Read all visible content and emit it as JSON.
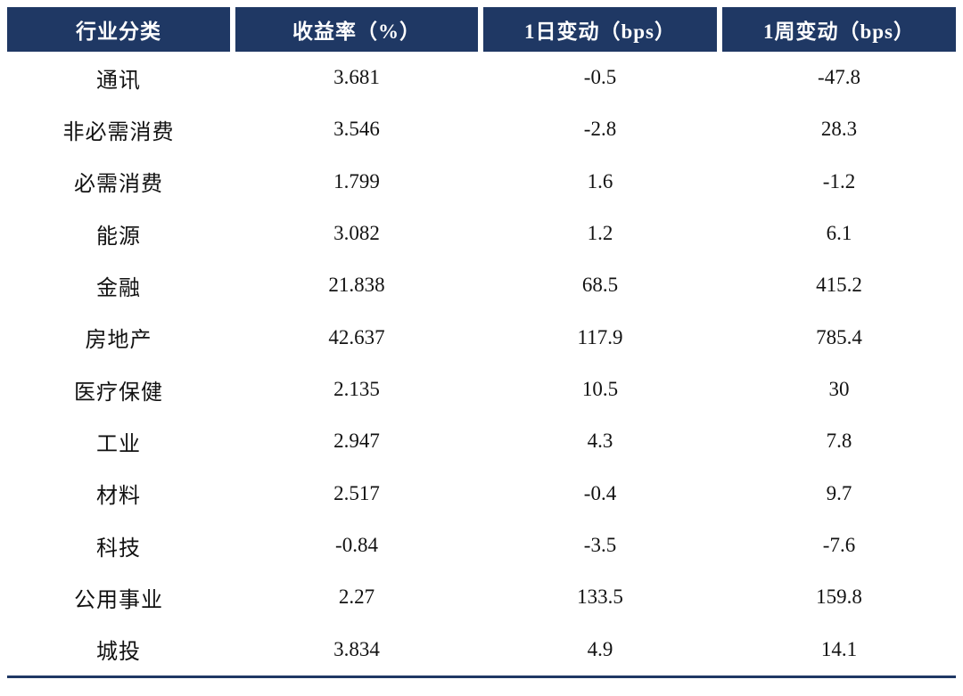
{
  "colors": {
    "header_bg": "#1f3864",
    "header_text": "#ffffff",
    "body_text": "#121212",
    "bottom_border": "#1f3864",
    "page_bg": "#ffffff"
  },
  "chart_data": {
    "type": "table",
    "title": "",
    "columns": [
      "行业分类",
      "收益率（%）",
      "1日变动（bps）",
      "1周变动（bps）"
    ],
    "rows": [
      {
        "industry": "通讯",
        "yield_pct": "3.681",
        "change_1d_bps": "-0.5",
        "change_1w_bps": "-47.8"
      },
      {
        "industry": "非必需消费",
        "yield_pct": "3.546",
        "change_1d_bps": "-2.8",
        "change_1w_bps": "28.3"
      },
      {
        "industry": "必需消费",
        "yield_pct": "1.799",
        "change_1d_bps": "1.6",
        "change_1w_bps": "-1.2"
      },
      {
        "industry": "能源",
        "yield_pct": "3.082",
        "change_1d_bps": "1.2",
        "change_1w_bps": "6.1"
      },
      {
        "industry": "金融",
        "yield_pct": "21.838",
        "change_1d_bps": "68.5",
        "change_1w_bps": "415.2"
      },
      {
        "industry": "房地产",
        "yield_pct": "42.637",
        "change_1d_bps": "117.9",
        "change_1w_bps": "785.4"
      },
      {
        "industry": "医疗保健",
        "yield_pct": "2.135",
        "change_1d_bps": "10.5",
        "change_1w_bps": "30"
      },
      {
        "industry": "工业",
        "yield_pct": "2.947",
        "change_1d_bps": "4.3",
        "change_1w_bps": "7.8"
      },
      {
        "industry": "材料",
        "yield_pct": "2.517",
        "change_1d_bps": "-0.4",
        "change_1w_bps": "9.7"
      },
      {
        "industry": "科技",
        "yield_pct": "-0.84",
        "change_1d_bps": "-3.5",
        "change_1w_bps": "-7.6"
      },
      {
        "industry": "公用事业",
        "yield_pct": "2.27",
        "change_1d_bps": "133.5",
        "change_1w_bps": "159.8"
      },
      {
        "industry": "城投",
        "yield_pct": "3.834",
        "change_1d_bps": "4.9",
        "change_1w_bps": "14.1"
      }
    ]
  }
}
